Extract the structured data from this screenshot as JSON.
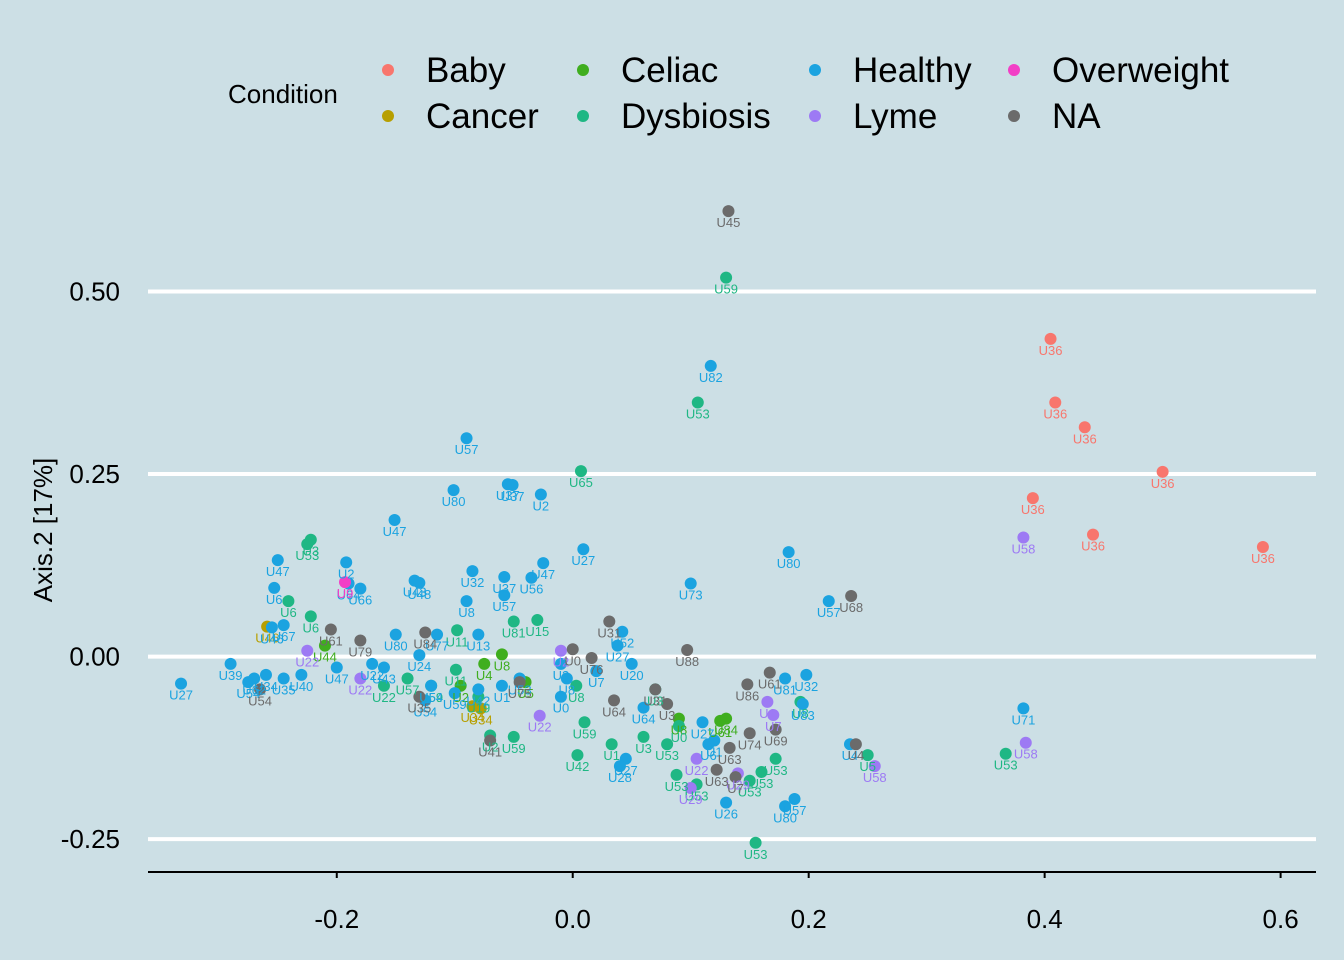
{
  "chart_data": {
    "type": "scatter",
    "title": "",
    "xlabel": "",
    "ylabel": "Axis.2   [17%]",
    "xlim": [
      -0.36,
      0.63
    ],
    "ylim": [
      -0.295,
      0.68
    ],
    "xticks": [
      -0.2,
      0.0,
      0.2,
      0.4,
      0.6
    ],
    "yticks": [
      -0.25,
      0.0,
      0.25,
      0.5
    ],
    "xtick_labels": [
      "-0.2",
      "0.0",
      "0.2",
      "0.4",
      "0.6"
    ],
    "ytick_labels": [
      "-0.25",
      "0.00",
      "0.25",
      "0.50"
    ],
    "grid": "horizontal major lines",
    "legend": {
      "title": "Condition",
      "position": "top",
      "entries": [
        {
          "name": "Baby",
          "color": "#f8766d"
        },
        {
          "name": "Cancer",
          "color": "#b79f00"
        },
        {
          "name": "Celiac",
          "color": "#3fae1f"
        },
        {
          "name": "Dysbiosis",
          "color": "#1fb784"
        },
        {
          "name": "Healthy",
          "color": "#1ba3e0"
        },
        {
          "name": "Lyme",
          "color": "#9d7af4"
        },
        {
          "name": "Overweight",
          "color": "#f23fc6"
        },
        {
          "name": "NA",
          "color": "#6b6b6b"
        }
      ]
    },
    "series": [
      {
        "name": "Baby",
        "color": "#f8766d",
        "points": [
          {
            "x": 0.405,
            "y": 0.435,
            "label": "U36"
          },
          {
            "x": 0.409,
            "y": 0.348,
            "label": "U36"
          },
          {
            "x": 0.434,
            "y": 0.314,
            "label": "U36"
          },
          {
            "x": 0.5,
            "y": 0.253,
            "label": "U36"
          },
          {
            "x": 0.39,
            "y": 0.217,
            "label": "U36"
          },
          {
            "x": 0.441,
            "y": 0.167,
            "label": "U36"
          },
          {
            "x": 0.585,
            "y": 0.15,
            "label": "U36"
          }
        ]
      },
      {
        "name": "Cancer",
        "color": "#b79f00",
        "points": [
          {
            "x": -0.259,
            "y": 0.041,
            "label": "U46"
          },
          {
            "x": -0.078,
            "y": -0.071,
            "label": "U34"
          },
          {
            "x": -0.085,
            "y": -0.068,
            "label": "U34"
          }
        ]
      },
      {
        "name": "Celiac",
        "color": "#3fae1f",
        "points": [
          {
            "x": -0.21,
            "y": 0.015,
            "label": "U44"
          },
          {
            "x": -0.095,
            "y": -0.04,
            "label": "U2"
          },
          {
            "x": -0.075,
            "y": -0.01,
            "label": "U4"
          },
          {
            "x": -0.06,
            "y": 0.003,
            "label": "U8"
          },
          {
            "x": -0.04,
            "y": -0.035,
            "label": "U5"
          },
          {
            "x": 0.125,
            "y": -0.088,
            "label": "U61"
          },
          {
            "x": 0.13,
            "y": -0.085,
            "label": "U84"
          },
          {
            "x": 0.09,
            "y": -0.085,
            "label": "U8"
          }
        ]
      },
      {
        "name": "Dysbiosis",
        "color": "#1fb784",
        "points": [
          {
            "x": 0.13,
            "y": 0.519,
            "label": "U59"
          },
          {
            "x": 0.106,
            "y": 0.348,
            "label": "U53"
          },
          {
            "x": 0.007,
            "y": 0.254,
            "label": "U65"
          },
          {
            "x": -0.222,
            "y": 0.16,
            "label": "U3"
          },
          {
            "x": -0.225,
            "y": 0.154,
            "label": "U53"
          },
          {
            "x": -0.241,
            "y": 0.076,
            "label": "U6"
          },
          {
            "x": -0.222,
            "y": 0.055,
            "label": "U6"
          },
          {
            "x": -0.05,
            "y": 0.048,
            "label": "U81"
          },
          {
            "x": -0.03,
            "y": 0.05,
            "label": "U15"
          },
          {
            "x": -0.098,
            "y": 0.036,
            "label": "U11"
          },
          {
            "x": -0.08,
            "y": -0.055,
            "label": "U19"
          },
          {
            "x": -0.099,
            "y": -0.018,
            "label": "U11"
          },
          {
            "x": -0.12,
            "y": -0.04,
            "label": "U59"
          },
          {
            "x": -0.07,
            "y": -0.108,
            "label": "U2"
          },
          {
            "x": -0.05,
            "y": -0.11,
            "label": "U59"
          },
          {
            "x": 0.004,
            "y": -0.135,
            "label": "U42"
          },
          {
            "x": 0.003,
            "y": -0.04,
            "label": "U8"
          },
          {
            "x": 0.01,
            "y": -0.09,
            "label": "U59"
          },
          {
            "x": 0.033,
            "y": -0.12,
            "label": "U1"
          },
          {
            "x": 0.06,
            "y": -0.11,
            "label": "U3"
          },
          {
            "x": 0.08,
            "y": -0.12,
            "label": "U53"
          },
          {
            "x": 0.09,
            "y": -0.095,
            "label": "U0"
          },
          {
            "x": 0.088,
            "y": -0.162,
            "label": "U53"
          },
          {
            "x": 0.105,
            "y": -0.175,
            "label": "U53"
          },
          {
            "x": 0.15,
            "y": -0.17,
            "label": "U53"
          },
          {
            "x": 0.16,
            "y": -0.158,
            "label": "U53"
          },
          {
            "x": 0.172,
            "y": -0.14,
            "label": "U53"
          },
          {
            "x": 0.155,
            "y": -0.255,
            "label": "U53"
          },
          {
            "x": 0.193,
            "y": -0.062,
            "label": "U8"
          },
          {
            "x": 0.25,
            "y": -0.135,
            "label": "U5"
          },
          {
            "x": 0.367,
            "y": -0.133,
            "label": "U53"
          },
          {
            "x": 0.07,
            "y": -0.045,
            "label": "U3"
          },
          {
            "x": -0.14,
            "y": -0.03,
            "label": "U57"
          },
          {
            "x": -0.16,
            "y": -0.04,
            "label": "U22"
          }
        ]
      },
      {
        "name": "Healthy",
        "color": "#1ba3e0",
        "points": [
          {
            "x": 0.117,
            "y": 0.398,
            "label": "U82"
          },
          {
            "x": -0.09,
            "y": 0.299,
            "label": "U57"
          },
          {
            "x": -0.101,
            "y": 0.228,
            "label": "U80"
          },
          {
            "x": -0.055,
            "y": 0.236,
            "label": "U37"
          },
          {
            "x": -0.051,
            "y": 0.235,
            "label": "U37"
          },
          {
            "x": -0.027,
            "y": 0.222,
            "label": "U2"
          },
          {
            "x": -0.151,
            "y": 0.187,
            "label": "U47"
          },
          {
            "x": 0.009,
            "y": 0.147,
            "label": "U27"
          },
          {
            "x": 0.183,
            "y": 0.143,
            "label": "U80"
          },
          {
            "x": -0.25,
            "y": 0.132,
            "label": "U47"
          },
          {
            "x": -0.192,
            "y": 0.129,
            "label": "U2"
          },
          {
            "x": -0.025,
            "y": 0.128,
            "label": "U47"
          },
          {
            "x": -0.085,
            "y": 0.117,
            "label": "U32"
          },
          {
            "x": -0.058,
            "y": 0.109,
            "label": "U37"
          },
          {
            "x": -0.035,
            "y": 0.108,
            "label": "U56"
          },
          {
            "x": -0.134,
            "y": 0.104,
            "label": "U43"
          },
          {
            "x": -0.13,
            "y": 0.101,
            "label": "U48"
          },
          {
            "x": -0.19,
            "y": 0.1,
            "label": "U64"
          },
          {
            "x": -0.18,
            "y": 0.093,
            "label": "U66"
          },
          {
            "x": 0.1,
            "y": 0.1,
            "label": "U73"
          },
          {
            "x": -0.09,
            "y": 0.076,
            "label": "U8"
          },
          {
            "x": -0.058,
            "y": 0.084,
            "label": "U57"
          },
          {
            "x": 0.217,
            "y": 0.076,
            "label": "U57"
          },
          {
            "x": -0.253,
            "y": 0.094,
            "label": "U6"
          },
          {
            "x": -0.245,
            "y": 0.043,
            "label": "U67"
          },
          {
            "x": -0.255,
            "y": 0.04,
            "label": "U46"
          },
          {
            "x": -0.15,
            "y": 0.03,
            "label": "U80"
          },
          {
            "x": 0.042,
            "y": 0.034,
            "label": "U52"
          },
          {
            "x": 0.038,
            "y": 0.015,
            "label": "U27"
          },
          {
            "x": -0.115,
            "y": 0.03,
            "label": "U77"
          },
          {
            "x": -0.08,
            "y": 0.03,
            "label": "U13"
          },
          {
            "x": -0.13,
            "y": 0.002,
            "label": "U24"
          },
          {
            "x": -0.16,
            "y": -0.015,
            "label": "U43"
          },
          {
            "x": -0.29,
            "y": -0.01,
            "label": "U39"
          },
          {
            "x": -0.275,
            "y": -0.035,
            "label": "U54"
          },
          {
            "x": -0.27,
            "y": -0.03,
            "label": "U62"
          },
          {
            "x": -0.26,
            "y": -0.025,
            "label": "U34"
          },
          {
            "x": -0.245,
            "y": -0.03,
            "label": "U35"
          },
          {
            "x": -0.23,
            "y": -0.025,
            "label": "U40"
          },
          {
            "x": -0.2,
            "y": -0.015,
            "label": "U47"
          },
          {
            "x": -0.17,
            "y": -0.01,
            "label": "U22"
          },
          {
            "x": -0.12,
            "y": -0.04,
            "label": "U54"
          },
          {
            "x": -0.125,
            "y": -0.06,
            "label": "U54"
          },
          {
            "x": -0.1,
            "y": -0.05,
            "label": "U59"
          },
          {
            "x": -0.08,
            "y": -0.045,
            "label": "U42"
          },
          {
            "x": -0.06,
            "y": -0.04,
            "label": "U1"
          },
          {
            "x": -0.045,
            "y": -0.03,
            "label": "U53"
          },
          {
            "x": -0.005,
            "y": -0.03,
            "label": "U8"
          },
          {
            "x": -0.01,
            "y": -0.055,
            "label": "U0"
          },
          {
            "x": 0.05,
            "y": -0.01,
            "label": "U20"
          },
          {
            "x": 0.06,
            "y": -0.07,
            "label": "U64"
          },
          {
            "x": 0.11,
            "y": -0.09,
            "label": "U27"
          },
          {
            "x": 0.12,
            "y": -0.115,
            "label": "U1"
          },
          {
            "x": 0.115,
            "y": -0.12,
            "label": "U6"
          },
          {
            "x": 0.045,
            "y": -0.14,
            "label": "U27"
          },
          {
            "x": 0.04,
            "y": -0.15,
            "label": "U28"
          },
          {
            "x": 0.13,
            "y": -0.2,
            "label": "U26"
          },
          {
            "x": 0.18,
            "y": -0.205,
            "label": "U80"
          },
          {
            "x": 0.188,
            "y": -0.195,
            "label": "U57"
          },
          {
            "x": 0.18,
            "y": -0.03,
            "label": "U81"
          },
          {
            "x": 0.198,
            "y": -0.025,
            "label": "U32"
          },
          {
            "x": 0.195,
            "y": -0.065,
            "label": "U83"
          },
          {
            "x": 0.235,
            "y": -0.12,
            "label": "U4"
          },
          {
            "x": 0.382,
            "y": -0.071,
            "label": "U71"
          },
          {
            "x": -0.332,
            "y": -0.037,
            "label": "U27"
          },
          {
            "x": -0.01,
            "y": -0.01,
            "label": "U3"
          },
          {
            "x": 0.02,
            "y": -0.02,
            "label": "U7"
          }
        ]
      },
      {
        "name": "Lyme",
        "color": "#9d7af4",
        "points": [
          {
            "x": 0.382,
            "y": 0.163,
            "label": "U58"
          },
          {
            "x": 0.384,
            "y": -0.118,
            "label": "U58"
          },
          {
            "x": 0.256,
            "y": -0.15,
            "label": "U58"
          },
          {
            "x": -0.225,
            "y": 0.008,
            "label": "U22"
          },
          {
            "x": -0.18,
            "y": -0.03,
            "label": "U22"
          },
          {
            "x": -0.028,
            "y": -0.081,
            "label": "U22"
          },
          {
            "x": -0.01,
            "y": 0.008,
            "label": "U2"
          },
          {
            "x": 0.165,
            "y": -0.062,
            "label": "U1"
          },
          {
            "x": 0.17,
            "y": -0.08,
            "label": "U7"
          },
          {
            "x": 0.105,
            "y": -0.14,
            "label": "U22"
          },
          {
            "x": 0.14,
            "y": -0.16,
            "label": "U29"
          },
          {
            "x": 0.1,
            "y": -0.18,
            "label": "U29"
          }
        ]
      },
      {
        "name": "Overweight",
        "color": "#f23fc6",
        "points": [
          {
            "x": -0.193,
            "y": 0.102,
            "label": "U9"
          }
        ]
      },
      {
        "name": "NA",
        "color": "#6b6b6b",
        "points": [
          {
            "x": 0.132,
            "y": 0.61,
            "label": "U45"
          },
          {
            "x": 0.236,
            "y": 0.083,
            "label": "U68"
          },
          {
            "x": 0.031,
            "y": 0.048,
            "label": "U31"
          },
          {
            "x": 0.097,
            "y": 0.009,
            "label": "U88"
          },
          {
            "x": -0.205,
            "y": 0.037,
            "label": "U61"
          },
          {
            "x": -0.18,
            "y": 0.022,
            "label": "U79"
          },
          {
            "x": -0.125,
            "y": 0.033,
            "label": "U84"
          },
          {
            "x": 0.016,
            "y": -0.002,
            "label": "U76"
          },
          {
            "x": -0.045,
            "y": -0.035,
            "label": "U75"
          },
          {
            "x": -0.07,
            "y": -0.115,
            "label": "U41"
          },
          {
            "x": 0.148,
            "y": -0.038,
            "label": "U86"
          },
          {
            "x": 0.167,
            "y": -0.022,
            "label": "U61"
          },
          {
            "x": 0.035,
            "y": -0.06,
            "label": "U64"
          },
          {
            "x": 0.07,
            "y": -0.045,
            "label": "U31"
          },
          {
            "x": 0.15,
            "y": -0.105,
            "label": "U74"
          },
          {
            "x": 0.172,
            "y": -0.1,
            "label": "U69"
          },
          {
            "x": 0.133,
            "y": -0.125,
            "label": "U63"
          },
          {
            "x": 0.122,
            "y": -0.155,
            "label": "U63"
          },
          {
            "x": 0.24,
            "y": -0.12,
            "label": "U4"
          },
          {
            "x": 0.138,
            "y": -0.165,
            "label": "U7"
          },
          {
            "x": -0.265,
            "y": -0.045,
            "label": "U54"
          },
          {
            "x": -0.13,
            "y": -0.055,
            "label": "U35"
          },
          {
            "x": 0.0,
            "y": 0.01,
            "label": "U0"
          },
          {
            "x": 0.08,
            "y": -0.065,
            "label": "U3"
          }
        ]
      }
    ]
  }
}
